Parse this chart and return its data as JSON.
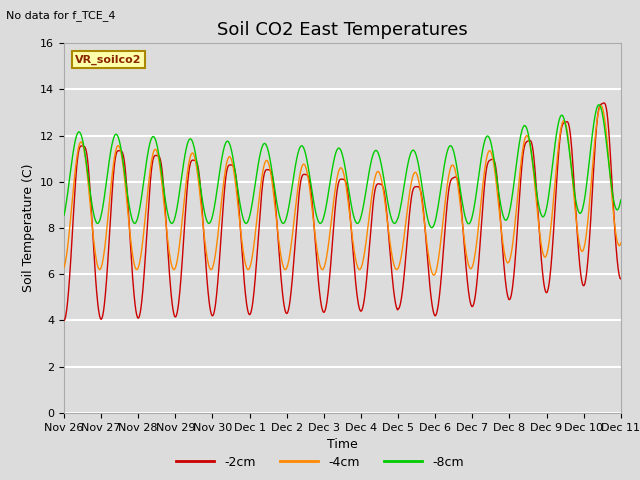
{
  "title": "Soil CO2 East Temperatures",
  "subtitle": "No data for f_TCE_4",
  "ylabel": "Soil Temperature (C)",
  "xlabel": "Time",
  "legend_label": "VR_soilco2",
  "ylim": [
    0,
    16
  ],
  "yticks": [
    0,
    2,
    4,
    6,
    8,
    10,
    12,
    14,
    16
  ],
  "xtick_labels": [
    "Nov 26",
    "Nov 27",
    "Nov 28",
    "Nov 29",
    "Nov 30",
    "Dec 1",
    "Dec 2",
    "Dec 3",
    "Dec 4",
    "Dec 5",
    "Dec 6",
    "Dec 7",
    "Dec 8",
    "Dec 9",
    "Dec 10",
    "Dec 11"
  ],
  "line_colors": {
    "-2cm": "#cc0000",
    "-4cm": "#ff8800",
    "-8cm": "#00cc00"
  },
  "bg_color": "#dcdcdc",
  "grid_color": "#ffffff",
  "title_fontsize": 13,
  "axis_label_fontsize": 9,
  "tick_fontsize": 8,
  "figsize": [
    6.4,
    4.8
  ],
  "dpi": 100
}
